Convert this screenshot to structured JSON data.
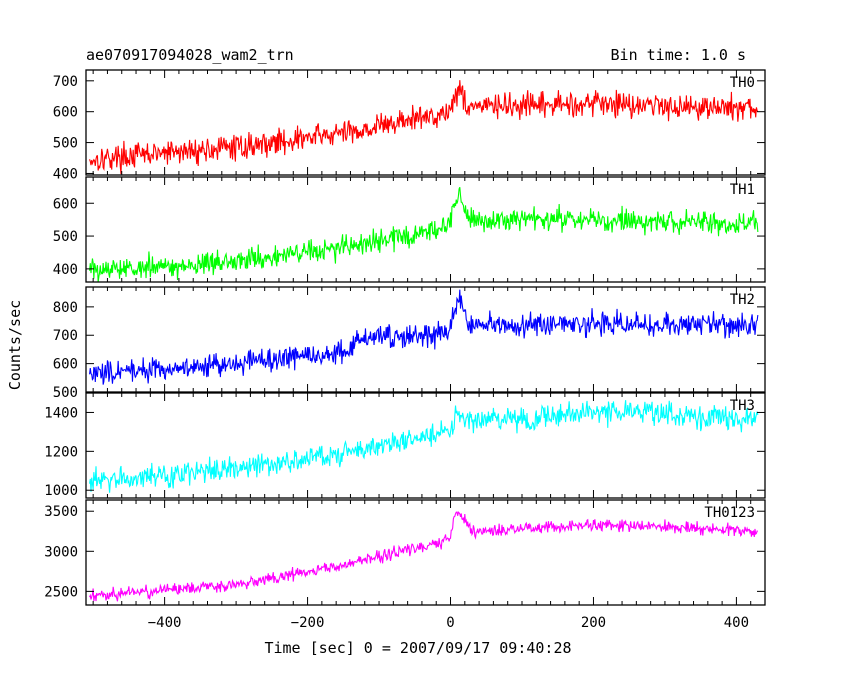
{
  "header": {
    "title": "ae070917094028_wam2_trn",
    "bin_time": "Bin time: 1.0 s"
  },
  "chart_data": {
    "type": "line",
    "xlabel": "Time [sec] 0 = 2007/09/17 09:40:28",
    "ylabel": "Counts/sec",
    "xlim": [
      -510,
      440
    ],
    "x_ticks": [
      -400,
      -200,
      0,
      200,
      400
    ],
    "x_tick_labels": [
      "−400",
      "−200",
      "0",
      "200",
      "400"
    ],
    "x_range": [
      -505,
      430
    ],
    "bin_time_s": 1.0,
    "panels": [
      {
        "name": "TH0",
        "color": "#ff0000",
        "ylim": [
          395,
          735
        ],
        "y_ticks": [
          400,
          500,
          600,
          700
        ],
        "y_tick_labels": [
          "400",
          "500",
          "600",
          "700"
        ],
        "noise": 30,
        "trend": [
          [
            -505,
            445
          ],
          [
            -300,
            485
          ],
          [
            -150,
            530
          ],
          [
            -10,
            595
          ],
          [
            0,
            605
          ],
          [
            5,
            640
          ],
          [
            12,
            685
          ],
          [
            22,
            620
          ],
          [
            100,
            615
          ],
          [
            200,
            630
          ],
          [
            300,
            620
          ],
          [
            430,
            610
          ]
        ]
      },
      {
        "name": "TH1",
        "color": "#00ff00",
        "ylim": [
          360,
          680
        ],
        "y_ticks": [
          400,
          500,
          600
        ],
        "y_tick_labels": [
          "400",
          "500",
          "600"
        ],
        "noise": 25,
        "trend": [
          [
            -505,
            395
          ],
          [
            -300,
            420
          ],
          [
            -150,
            465
          ],
          [
            -10,
            525
          ],
          [
            0,
            540
          ],
          [
            5,
            590
          ],
          [
            12,
            625
          ],
          [
            25,
            555
          ],
          [
            100,
            550
          ],
          [
            200,
            555
          ],
          [
            300,
            545
          ],
          [
            430,
            535
          ]
        ]
      },
      {
        "name": "TH2",
        "color": "#0000ff",
        "ylim": [
          500,
          870
        ],
        "y_ticks": [
          500,
          600,
          700,
          800
        ],
        "y_tick_labels": [
          "500",
          "600",
          "700",
          "800"
        ],
        "noise": 30,
        "trend": [
          [
            -505,
            565
          ],
          [
            -300,
            600
          ],
          [
            -150,
            640
          ],
          [
            -120,
            690
          ],
          [
            -20,
            700
          ],
          [
            0,
            720
          ],
          [
            5,
            790
          ],
          [
            12,
            820
          ],
          [
            25,
            740
          ],
          [
            100,
            730
          ],
          [
            200,
            745
          ],
          [
            300,
            740
          ],
          [
            430,
            735
          ]
        ]
      },
      {
        "name": "TH3",
        "color": "#00ffff",
        "ylim": [
          960,
          1500
        ],
        "y_ticks": [
          1000,
          1200,
          1400
        ],
        "y_tick_labels": [
          "1000",
          "1200",
          "1400"
        ],
        "noise": 45,
        "trend": [
          [
            -505,
            1040
          ],
          [
            -300,
            1110
          ],
          [
            -150,
            1190
          ],
          [
            -10,
            1290
          ],
          [
            0,
            1310
          ],
          [
            10,
            1390
          ],
          [
            25,
            1360
          ],
          [
            100,
            1360
          ],
          [
            200,
            1410
          ],
          [
            300,
            1390
          ],
          [
            430,
            1360
          ]
        ]
      },
      {
        "name": "TH0123",
        "color": "#ff00ff",
        "ylim": [
          2330,
          3640
        ],
        "y_ticks": [
          2500,
          3000,
          3500
        ],
        "y_tick_labels": [
          "2500",
          "3000",
          "3500"
        ],
        "noise": 55,
        "trend": [
          [
            -505,
            2440
          ],
          [
            -300,
            2580
          ],
          [
            -150,
            2830
          ],
          [
            -10,
            3120
          ],
          [
            0,
            3180
          ],
          [
            5,
            3420
          ],
          [
            12,
            3500
          ],
          [
            30,
            3250
          ],
          [
            100,
            3280
          ],
          [
            200,
            3330
          ],
          [
            300,
            3300
          ],
          [
            430,
            3250
          ]
        ]
      }
    ]
  }
}
